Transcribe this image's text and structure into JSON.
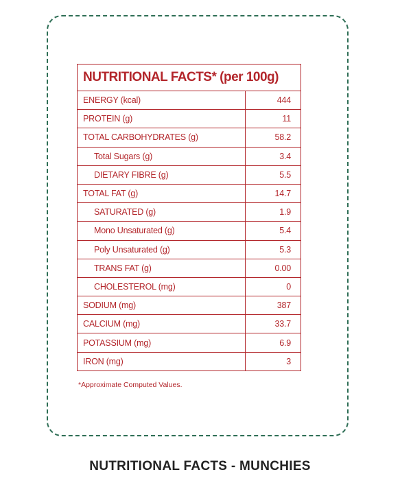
{
  "table": {
    "title": "NUTRITIONAL FACTS* (per 100g)",
    "rows": [
      [
        "ENERGY (kcal)",
        "444"
      ],
      [
        "PROTEIN (g)",
        "11"
      ],
      [
        "TOTAL CARBOHYDRATES (g)",
        "58.2"
      ],
      [
        "Total Sugars (g)",
        "3.4"
      ],
      [
        "DIETARY FIBRE (g)",
        "5.5"
      ],
      [
        "TOTAL FAT (g)",
        "14.7"
      ],
      [
        "SATURATED (g)",
        "1.9"
      ],
      [
        "Mono Unsaturated (g)",
        "5.4"
      ],
      [
        "Poly Unsaturated (g)",
        "5.3"
      ],
      [
        "TRANS FAT (g)",
        "0.00"
      ],
      [
        "CHOLESTEROL (mg)",
        "0"
      ],
      [
        "SODIUM (mg)",
        "387"
      ],
      [
        "CALCIUM (mg)",
        "33.7"
      ],
      [
        "POTASSIUM (mg)",
        "6.9"
      ],
      [
        "IRON (mg)",
        "3"
      ]
    ],
    "footnote": "*Approximate Computed Values."
  },
  "caption": "NUTRITIONAL FACTS - MUNCHIES"
}
